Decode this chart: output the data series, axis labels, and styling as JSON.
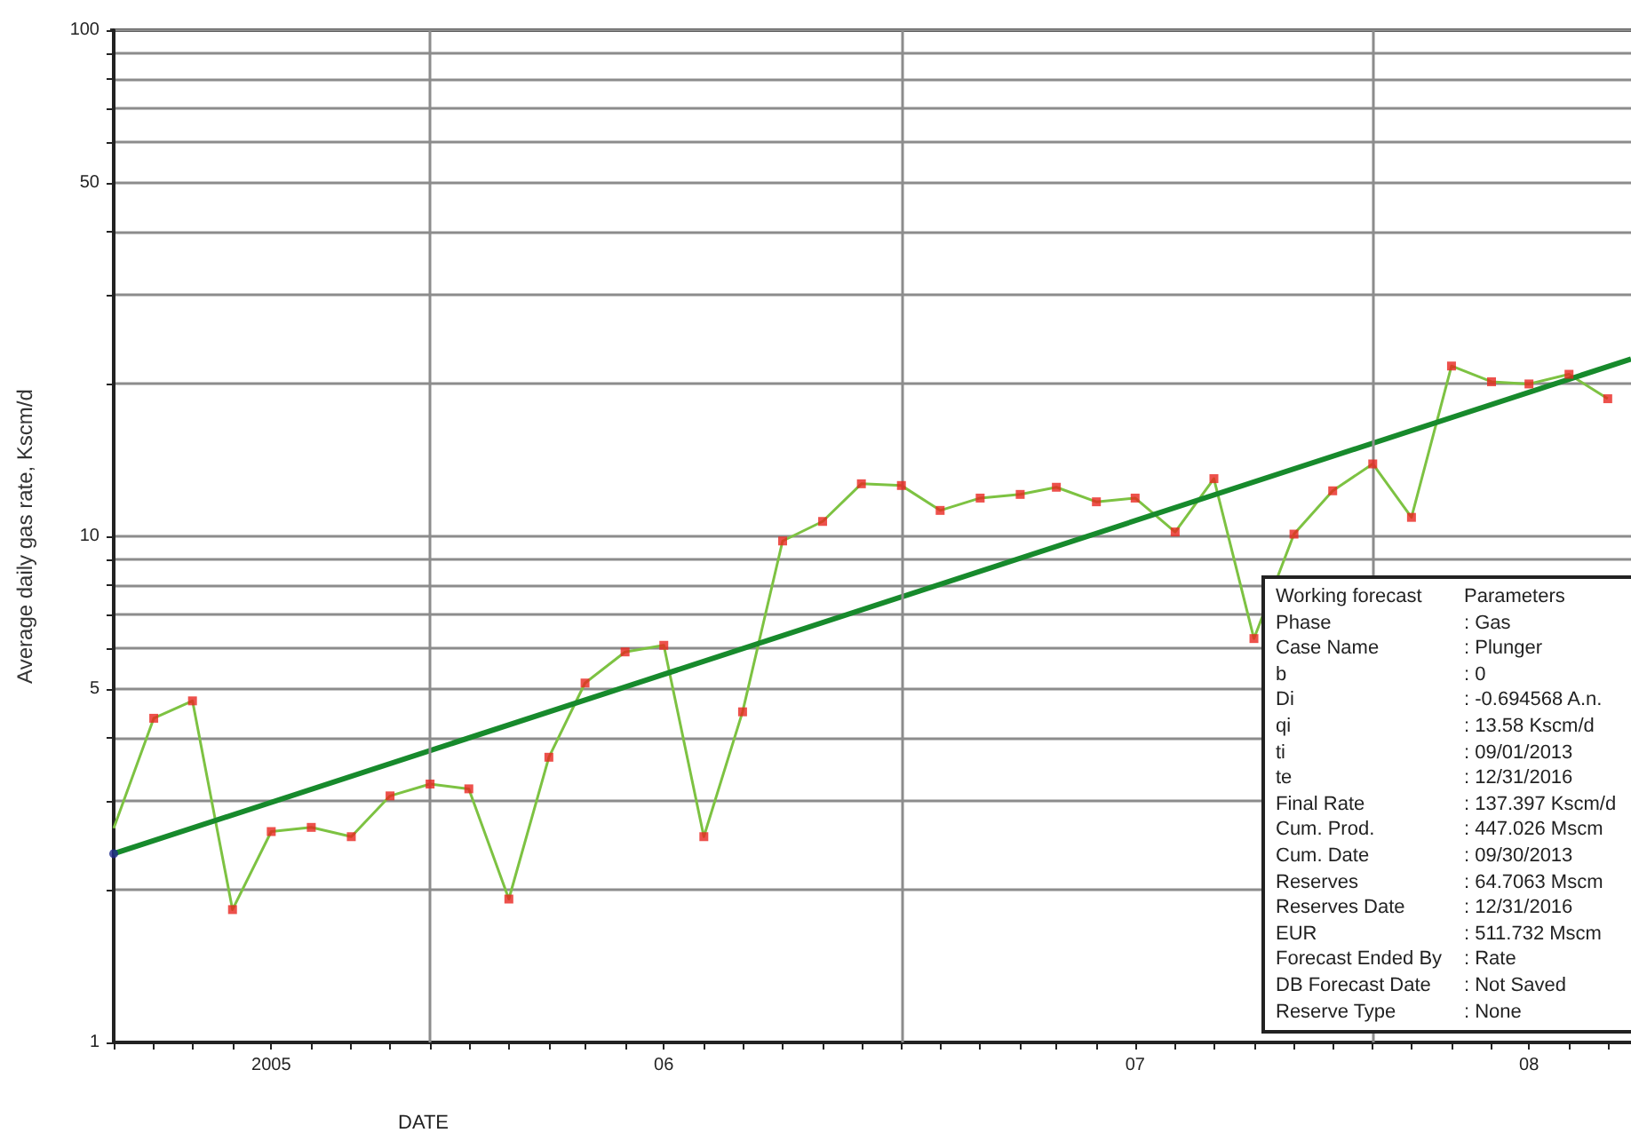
{
  "chart_data": {
    "type": "line",
    "xlabel": "DATE",
    "ylabel": "Average daily gas rate, Kscm/d",
    "log": "y",
    "ylim": [
      1,
      100
    ],
    "yticks": [
      1,
      {
        "value": 2,
        "label": null
      },
      {
        "value": 3,
        "label": null
      },
      {
        "value": 4,
        "label": null
      },
      5,
      {
        "value": 6,
        "label": null
      },
      {
        "value": 7,
        "label": null
      },
      {
        "value": 8,
        "label": null
      },
      {
        "value": 9,
        "label": null
      },
      10,
      {
        "value": 20,
        "label": null
      },
      {
        "value": 30,
        "label": null
      },
      {
        "value": 40,
        "label": null
      },
      50,
      {
        "value": 60,
        "label": null
      },
      {
        "value": 70,
        "label": null
      },
      {
        "value": 80,
        "label": null
      },
      {
        "value": 90,
        "label": null
      },
      100
    ],
    "xlim": [
      "2005-03",
      "2008-05-19"
    ],
    "xticks": [
      {
        "value": "2005-03",
        "label": null
      },
      {
        "value": "2005-04",
        "label": null
      },
      {
        "value": "2005-05",
        "label": null
      },
      {
        "value": "2005-06",
        "label": null
      },
      {
        "value": "2005-07",
        "label": "2005"
      },
      {
        "value": "2005-08",
        "label": null
      },
      {
        "value": "2005-09",
        "label": null
      },
      {
        "value": "2005-10",
        "label": null
      },
      {
        "value": "2005-11",
        "label": null
      },
      {
        "value": "2005-12",
        "label": null
      },
      {
        "value": "2006-01",
        "label": null
      },
      {
        "value": "2006-02",
        "label": null
      },
      {
        "value": "2006-03",
        "label": null
      },
      {
        "value": "2006-04",
        "label": null
      },
      {
        "value": "2006-05",
        "label": "06"
      },
      {
        "value": "2006-06",
        "label": null
      },
      {
        "value": "2006-07",
        "label": null
      },
      {
        "value": "2006-08",
        "label": null
      },
      {
        "value": "2006-09",
        "label": null
      },
      {
        "value": "2006-10",
        "label": null
      },
      {
        "value": "2006-11",
        "label": null
      },
      {
        "value": "2006-12",
        "label": null
      },
      {
        "value": "2007-01",
        "label": null
      },
      {
        "value": "2007-02",
        "label": null
      },
      {
        "value": "2007-03",
        "label": null
      },
      {
        "value": "2007-04",
        "label": null
      },
      {
        "value": "2007-05",
        "label": "07"
      },
      {
        "value": "2007-06",
        "label": null
      },
      {
        "value": "2007-07",
        "label": null
      },
      {
        "value": "2007-08",
        "label": null
      },
      {
        "value": "2007-09",
        "label": null
      },
      {
        "value": "2007-10",
        "label": null
      },
      {
        "value": "2007-11",
        "label": null
      },
      {
        "value": "2007-12",
        "label": null
      },
      {
        "value": "2008-01",
        "label": null
      },
      {
        "value": "2008-02",
        "label": null
      },
      {
        "value": "2008-03",
        "label": "08"
      },
      {
        "value": "2008-04",
        "label": null
      },
      {
        "value": "2008-05",
        "label": null
      }
    ],
    "grid": "y",
    "ref_lines": [
      {
        "axis": "x",
        "value": "2005-11",
        "color": "#8c8c8c"
      },
      {
        "axis": "x",
        "value": "2006-11",
        "color": "#8c8c8c"
      },
      {
        "axis": "x",
        "value": "2007-11",
        "color": "#8c8c8c"
      }
    ],
    "series": [
      {
        "color": "#7dc242",
        "marker": "none",
        "x": [
          "2005-03",
          "2005-04",
          "2005-05",
          "2005-06",
          "2005-07",
          "2005-08",
          "2005-09",
          "2005-10",
          "2005-11",
          "2005-12",
          "2006-01",
          "2006-02",
          "2006-03",
          "2006-04",
          "2006-05",
          "2006-06",
          "2006-07",
          "2006-08",
          "2006-09",
          "2006-10",
          "2006-11",
          "2006-12",
          "2007-01",
          "2007-02",
          "2007-03",
          "2007-04",
          "2007-05",
          "2007-06",
          "2007-07",
          "2007-08",
          "2007-09",
          "2007-10",
          "2007-11",
          "2007-12",
          "2008-01",
          "2008-02",
          "2008-03",
          "2008-04",
          "2008-05"
        ],
        "values": [
          2.65,
          4.37,
          4.73,
          1.83,
          2.61,
          2.66,
          2.55,
          3.07,
          3.24,
          3.17,
          1.92,
          3.66,
          5.13,
          5.91,
          6.09,
          2.55,
          4.5,
          9.79,
          10.7,
          12.7,
          12.6,
          11.25,
          11.9,
          12.1,
          12.5,
          11.7,
          11.9,
          10.2,
          13.0,
          6.28,
          10.1,
          12.3,
          13.9,
          10.9,
          21.7,
          20.2,
          20.0,
          20.9,
          18.7
        ]
      },
      {
        "type": "scatter",
        "color": "#e8251f",
        "marker": "square",
        "x": [
          "2005-04",
          "2005-05",
          "2005-06",
          "2005-07",
          "2005-08",
          "2005-09",
          "2005-10",
          "2005-11",
          "2005-12",
          "2006-01",
          "2006-02",
          "2006-03",
          "2006-04",
          "2006-05",
          "2006-06",
          "2006-07",
          "2006-08",
          "2006-09",
          "2006-10",
          "2006-11",
          "2006-12",
          "2007-01",
          "2007-02",
          "2007-03",
          "2007-04",
          "2007-05",
          "2007-06",
          "2007-07",
          "2007-08",
          "2007-09",
          "2007-10",
          "2007-11",
          "2007-12",
          "2008-01",
          "2008-02",
          "2008-03",
          "2008-04",
          "2008-05"
        ],
        "values": [
          4.37,
          4.73,
          1.83,
          2.61,
          2.66,
          2.55,
          3.07,
          3.24,
          3.17,
          1.92,
          3.66,
          5.13,
          5.91,
          6.09,
          2.55,
          4.5,
          9.79,
          10.7,
          12.7,
          12.6,
          11.25,
          11.9,
          12.1,
          12.5,
          11.7,
          11.9,
          10.2,
          13.0,
          6.28,
          10.1,
          12.3,
          13.9,
          10.9,
          21.7,
          20.2,
          20.0,
          20.9,
          18.7
        ]
      },
      {
        "color": "#178a2c",
        "marker": "none",
        "x": [
          "2005-03",
          "2008-05-19"
        ],
        "values": [
          2.36,
          22.4
        ]
      },
      {
        "type": "scatter",
        "color": "#1f2a8c",
        "marker": "circle",
        "x": [
          "2005-03"
        ],
        "values": [
          2.36
        ]
      }
    ],
    "annotations": [
      "Working forecast",
      "Parameters",
      "Phase",
      ": Gas",
      "Case Name",
      ": Plunger",
      "b",
      ": 0",
      "Di",
      ": -0.694568 A.n.",
      "qi",
      ": 13.58 Kscm/d",
      "ti",
      ": 09/01/2013",
      "te",
      ": 12/31/2016",
      "Final Rate",
      ": 137.397 Kscm/d",
      "Cum. Prod.",
      ": 447.026 Mscm",
      "Cum. Date",
      ": 09/30/2013",
      "Reserves",
      ": 64.7063 Mscm",
      "Reserves Date",
      ": 12/31/2016",
      "EUR",
      ": 511.732 Mscm",
      "Forecast Ended By",
      ": Rate",
      "DB Forecast Date",
      ": Not Saved",
      "Reserve Type",
      ": None"
    ]
  }
}
